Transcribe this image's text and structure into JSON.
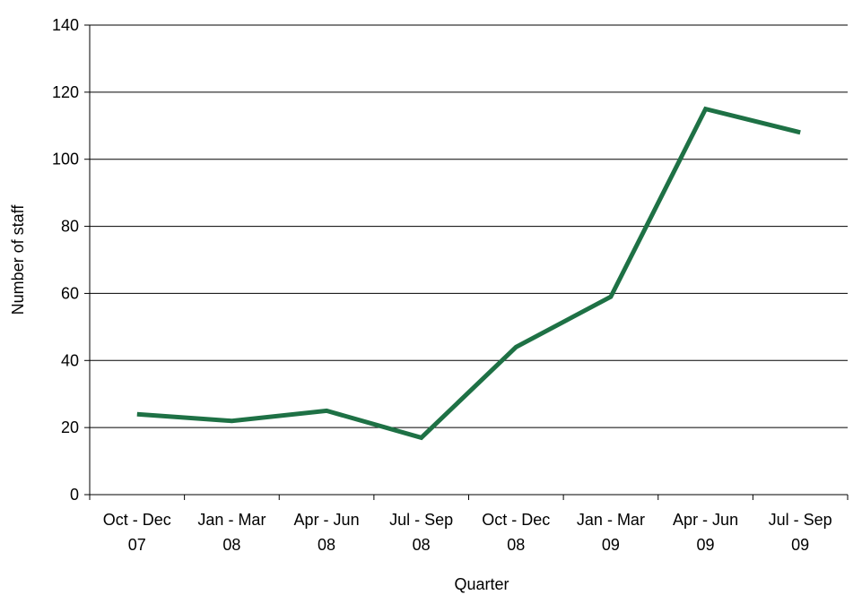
{
  "chart_data": {
    "type": "line",
    "title": "",
    "xlabel": "Quarter",
    "ylabel": "Number of staff",
    "categories": [
      [
        "Oct - Dec",
        "07"
      ],
      [
        "Jan - Mar",
        "08"
      ],
      [
        "Apr - Jun",
        "08"
      ],
      [
        "Jul - Sep",
        "08"
      ],
      [
        "Oct - Dec",
        "08"
      ],
      [
        "Jan - Mar",
        "09"
      ],
      [
        "Apr - Jun",
        "09"
      ],
      [
        "Jul - Sep",
        "09"
      ]
    ],
    "series": [
      {
        "values": [
          24,
          22,
          25,
          17,
          44,
          59,
          115,
          108
        ]
      }
    ],
    "ylim": [
      0,
      140
    ],
    "yticks": [
      0,
      20,
      40,
      60,
      80,
      100,
      120,
      140
    ],
    "grid": true,
    "legend": "none",
    "colors": {
      "line": "#1e7145",
      "grid": "#000000",
      "axis": "#000000"
    }
  }
}
